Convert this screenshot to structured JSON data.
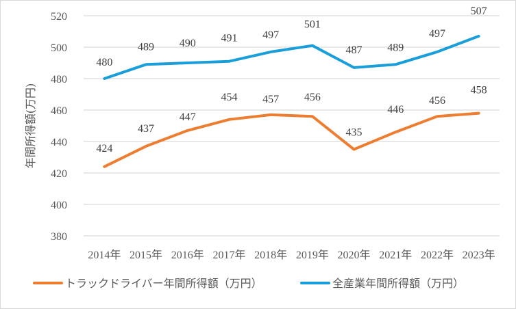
{
  "chart_data": {
    "type": "line",
    "title": "",
    "xlabel": "",
    "ylabel": "年間所得額(万円)",
    "categories": [
      "2014年",
      "2015年",
      "2016年",
      "2017年",
      "2018年",
      "2019年",
      "2020年",
      "2021年",
      "2022年",
      "2023年"
    ],
    "ylim": [
      380,
      520
    ],
    "yticks": [
      380,
      400,
      420,
      440,
      460,
      480,
      500,
      520
    ],
    "grid": true,
    "legend_position": "bottom",
    "series": [
      {
        "name": "トラックドライバー年間所得額（万円）",
        "color": "#ed7d31",
        "values": [
          424,
          437,
          447,
          454,
          457,
          456,
          435,
          446,
          456,
          458
        ]
      },
      {
        "name": "全産業年間所得額（万円）",
        "color": "#1a9ed9",
        "values": [
          480,
          489,
          490,
          491,
          497,
          501,
          487,
          489,
          497,
          507
        ]
      }
    ]
  }
}
